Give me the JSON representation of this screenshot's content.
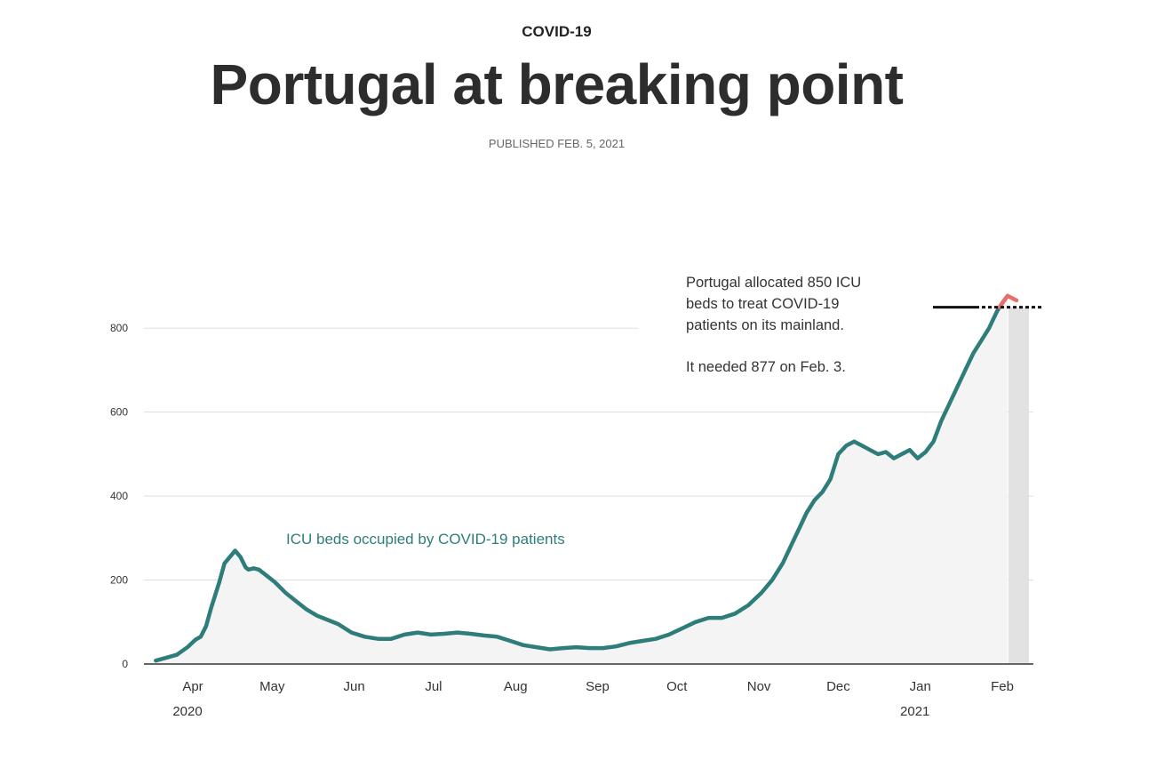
{
  "header": {
    "kicker": "COVID-19",
    "title": "Portugal at breaking point",
    "published": "PUBLISHED FEB. 5, 2021"
  },
  "colors": {
    "line": "#2e7d7a",
    "area": "#f4f4f4",
    "highlight": "#e96d6d",
    "shade": "#e2e2e2",
    "grid": "#dddddd"
  },
  "chart_data": {
    "type": "area",
    "x_unit": "date",
    "ylim": [
      0,
      900
    ],
    "y_ticks": [
      0,
      200,
      400,
      600,
      800
    ],
    "x_ticks": [
      {
        "date": "2020-04-01",
        "label": "Apr",
        "year": "2020"
      },
      {
        "date": "2020-05-01",
        "label": "May",
        "year": ""
      },
      {
        "date": "2020-06-01",
        "label": "Jun",
        "year": ""
      },
      {
        "date": "2020-07-01",
        "label": "Jul",
        "year": ""
      },
      {
        "date": "2020-08-01",
        "label": "Aug",
        "year": ""
      },
      {
        "date": "2020-09-01",
        "label": "Sep",
        "year": ""
      },
      {
        "date": "2020-10-01",
        "label": "Oct",
        "year": ""
      },
      {
        "date": "2020-11-01",
        "label": "Nov",
        "year": ""
      },
      {
        "date": "2020-12-01",
        "label": "Dec",
        "year": ""
      },
      {
        "date": "2021-01-01",
        "label": "Jan",
        "year": "2021"
      },
      {
        "date": "2021-02-01",
        "label": "Feb",
        "year": ""
      }
    ],
    "grid": true,
    "series_label": "ICU beds occupied by COVID-19 patients",
    "x": [
      "2020-03-18",
      "2020-03-22",
      "2020-03-26",
      "2020-03-30",
      "2020-04-02",
      "2020-04-04",
      "2020-04-06",
      "2020-04-08",
      "2020-04-11",
      "2020-04-13",
      "2020-04-15",
      "2020-04-17",
      "2020-04-19",
      "2020-04-21",
      "2020-04-22",
      "2020-04-24",
      "2020-04-26",
      "2020-04-28",
      "2020-05-02",
      "2020-05-06",
      "2020-05-10",
      "2020-05-14",
      "2020-05-18",
      "2020-05-22",
      "2020-05-26",
      "2020-05-31",
      "2020-06-05",
      "2020-06-10",
      "2020-06-15",
      "2020-06-20",
      "2020-06-25",
      "2020-06-30",
      "2020-07-05",
      "2020-07-10",
      "2020-07-15",
      "2020-07-20",
      "2020-07-25",
      "2020-07-30",
      "2020-08-04",
      "2020-08-09",
      "2020-08-14",
      "2020-08-19",
      "2020-08-24",
      "2020-08-29",
      "2020-09-03",
      "2020-09-08",
      "2020-09-13",
      "2020-09-18",
      "2020-09-23",
      "2020-09-28",
      "2020-10-03",
      "2020-10-08",
      "2020-10-13",
      "2020-10-18",
      "2020-10-23",
      "2020-10-28",
      "2020-11-02",
      "2020-11-06",
      "2020-11-10",
      "2020-11-13",
      "2020-11-16",
      "2020-11-19",
      "2020-11-22",
      "2020-11-25",
      "2020-11-28",
      "2020-12-01",
      "2020-12-04",
      "2020-12-07",
      "2020-12-10",
      "2020-12-13",
      "2020-12-16",
      "2020-12-19",
      "2020-12-22",
      "2020-12-25",
      "2020-12-28",
      "2020-12-31",
      "2021-01-03",
      "2021-01-06",
      "2021-01-09",
      "2021-01-12",
      "2021-01-15",
      "2021-01-18",
      "2021-01-21",
      "2021-01-24",
      "2021-01-27",
      "2021-01-30",
      "2021-02-01",
      "2021-02-03"
    ],
    "values": [
      8,
      15,
      22,
      40,
      58,
      65,
      90,
      135,
      195,
      240,
      255,
      270,
      255,
      230,
      225,
      228,
      225,
      215,
      195,
      170,
      150,
      130,
      115,
      105,
      95,
      75,
      65,
      60,
      60,
      70,
      75,
      70,
      72,
      75,
      72,
      68,
      65,
      55,
      45,
      40,
      35,
      38,
      40,
      38,
      38,
      42,
      50,
      55,
      60,
      70,
      85,
      100,
      110,
      110,
      120,
      140,
      170,
      200,
      240,
      280,
      320,
      360,
      390,
      410,
      440,
      500,
      520,
      530,
      520,
      510,
      500,
      505,
      490,
      500,
      510,
      490,
      505,
      530,
      580,
      620,
      660,
      700,
      740,
      770,
      800,
      840,
      860,
      877
    ],
    "capacity": {
      "value": 850,
      "note_line1": "Portugal allocated 850 ICU",
      "note_line2": "beds to treat COVID-19",
      "note_line3": "patients on its mainland.",
      "note_line4": "It needed 877 on Feb. 3."
    }
  }
}
